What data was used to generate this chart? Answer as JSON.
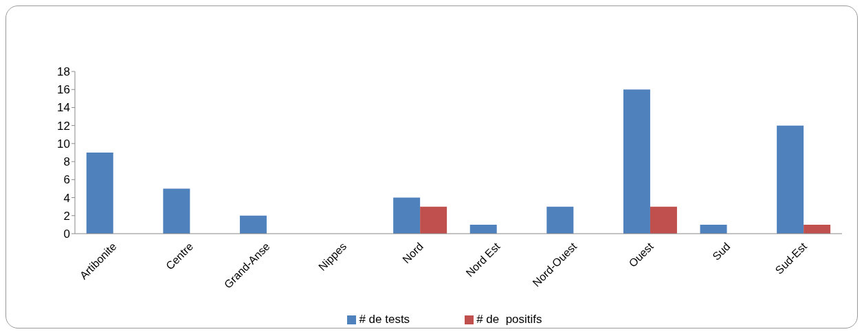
{
  "chart_data": {
    "type": "bar",
    "categories": [
      "Artibonite",
      "Centre",
      "Grand-Anse",
      "Nippes",
      "Nord",
      "Nord Est",
      "Nord-Ouest",
      "Ouest",
      "Sud",
      "Sud-Est"
    ],
    "series": [
      {
        "name": "# de tests",
        "color": "#4f81bd",
        "values": [
          9,
          5,
          2,
          0,
          4,
          1,
          3,
          16,
          1,
          12
        ]
      },
      {
        "name": "# de  positifs",
        "color": "#c0504d",
        "values": [
          0,
          0,
          0,
          0,
          3,
          0,
          0,
          3,
          0,
          1
        ]
      }
    ],
    "ylim": [
      0,
      18
    ],
    "yticks": [
      0,
      2,
      4,
      6,
      8,
      10,
      12,
      14,
      16,
      18
    ],
    "grid": false,
    "legend": "bottom"
  }
}
